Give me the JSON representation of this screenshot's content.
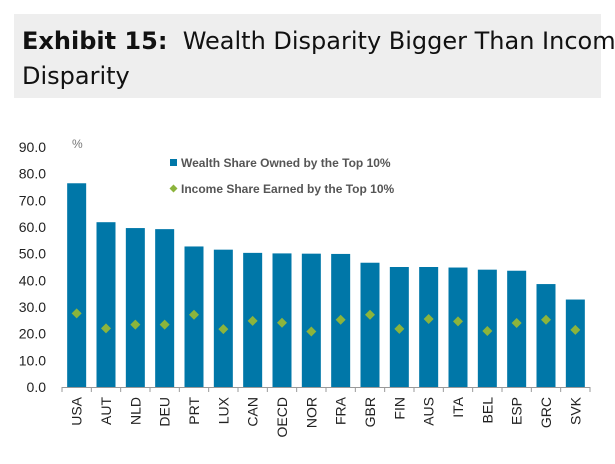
{
  "header": {
    "exhibit_label": "Exhibit 15:",
    "title_line1": "Wealth Disparity Bigger Than Income",
    "title_line2": "Disparity"
  },
  "chart_data": {
    "type": "bar",
    "title": "Wealth Disparity Bigger Than Income Disparity",
    "unit_label": "%",
    "categories": [
      "USA",
      "AUT",
      "NLD",
      "DEU",
      "PRT",
      "LUX",
      "CAN",
      "OECD",
      "NOR",
      "FRA",
      "GBR",
      "FIN",
      "AUS",
      "ITA",
      "BEL",
      "ESP",
      "GRC",
      "SVK"
    ],
    "series": [
      {
        "name": "Wealth Share Owned by the Top 10%",
        "type": "bar",
        "color": "#0077a8",
        "values": [
          76.4,
          61.8,
          59.6,
          59.2,
          52.7,
          51.5,
          50.3,
          50.1,
          50.0,
          49.9,
          46.6,
          45.0,
          45.0,
          44.8,
          44.0,
          43.6,
          38.6,
          32.8
        ]
      },
      {
        "name": "Income Share Earned by the Top 10%",
        "type": "marker",
        "color": "#8cb43c",
        "values": [
          27.6,
          22.0,
          23.4,
          23.4,
          27.1,
          21.7,
          24.8,
          24.1,
          20.8,
          25.2,
          27.1,
          21.8,
          25.5,
          24.6,
          21.0,
          24.0,
          25.2,
          21.4
        ]
      }
    ],
    "ylim": [
      0,
      90
    ],
    "yticks": [
      "0.0",
      "10.0",
      "20.0",
      "30.0",
      "40.0",
      "50.0",
      "60.0",
      "70.0",
      "80.0",
      "90.0"
    ],
    "xlabel": "",
    "ylabel": "%",
    "grid": false,
    "legend": "top-center"
  }
}
